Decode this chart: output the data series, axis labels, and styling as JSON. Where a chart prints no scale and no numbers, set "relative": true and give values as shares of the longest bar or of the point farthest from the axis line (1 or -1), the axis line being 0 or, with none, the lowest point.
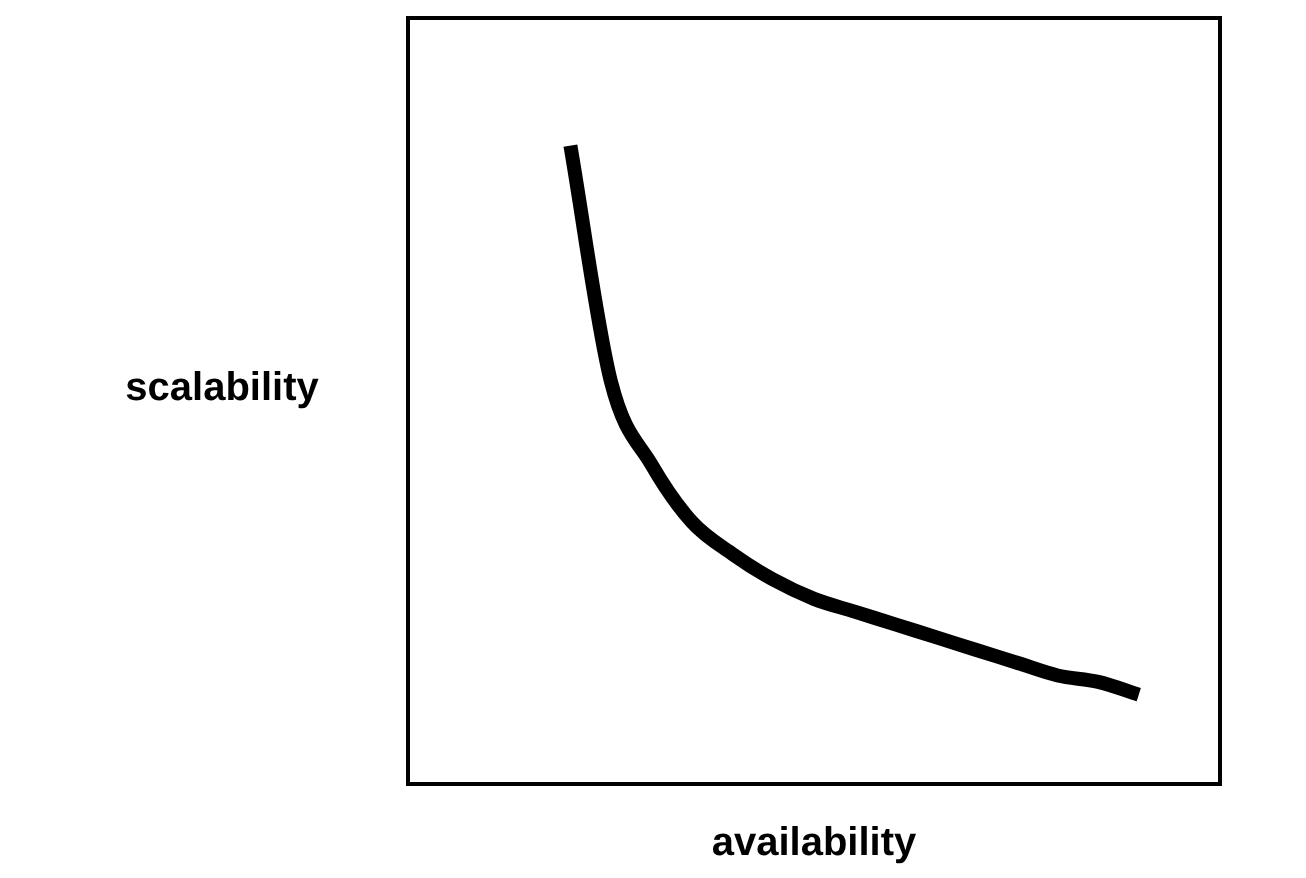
{
  "chart_data": {
    "type": "line",
    "xlabel": "availability",
    "ylabel": "scalability",
    "relative": true,
    "grid": false,
    "legend": false,
    "marker": "none",
    "line_style": "solid",
    "categories": [
      null,
      null,
      null,
      null,
      null,
      null,
      null,
      null,
      null,
      null,
      null,
      null,
      null,
      null,
      null,
      null,
      null,
      null,
      null,
      null,
      null
    ],
    "series": [
      {
        "color": "#000000",
        "values": [
          null,
          null,
          null,
          null,
          1,
          0.63,
          0.5,
          0.41,
          0.36,
          0.32,
          0.29,
          0.27,
          0.25,
          0.23,
          0.21,
          0.19,
          0.17,
          0.16,
          0.14,
          null,
          null
        ]
      }
    ]
  }
}
